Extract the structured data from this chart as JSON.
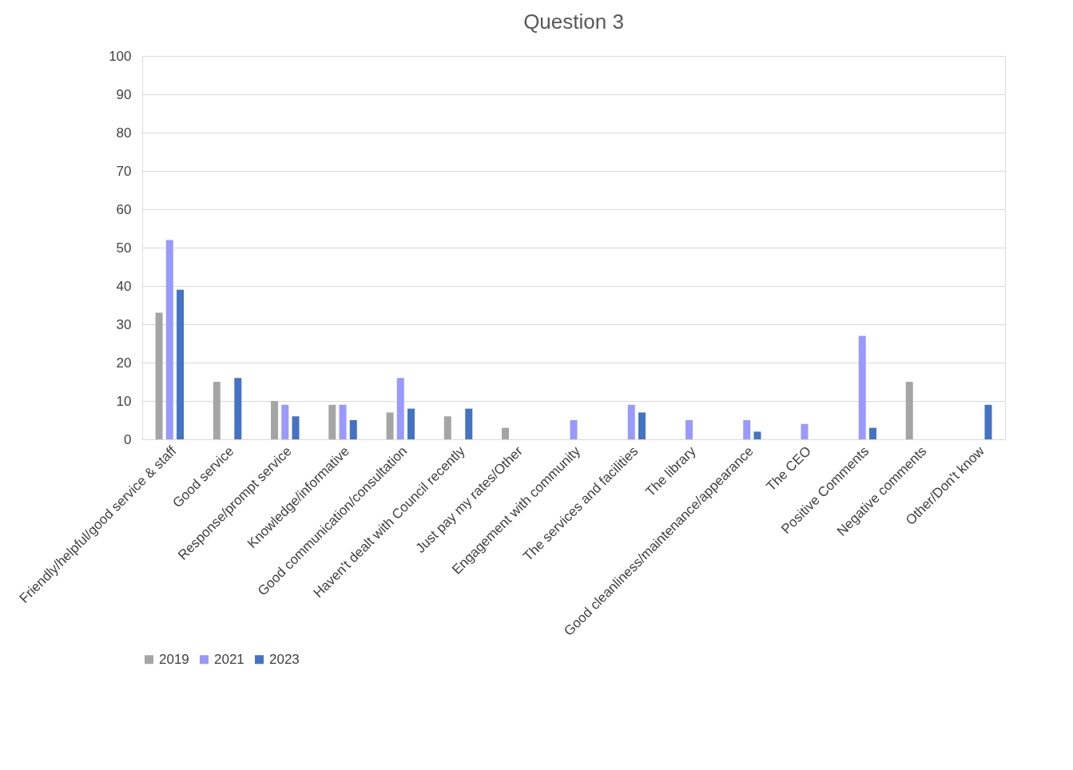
{
  "chart_data": {
    "type": "bar",
    "title": "Question 3",
    "categories": [
      "Friendly/helpful/good service & staff",
      "Good service",
      "Response/prompt service",
      "Knowledge/informative",
      "Good communication/consultation",
      "Haven't dealt with Council recently",
      "Just pay my rates/Other",
      "Engagement with community",
      "The services and facilities",
      "The library",
      "Good cleanliness/maintenance/appearance",
      "The CEO",
      "Positive Comments",
      "Negative comments",
      "Other/Don't know"
    ],
    "series": [
      {
        "name": "2019",
        "color": "#a5a5a5",
        "values": [
          33,
          15,
          10,
          9,
          7,
          6,
          3,
          null,
          null,
          null,
          null,
          null,
          null,
          15,
          null
        ]
      },
      {
        "name": "2021",
        "color": "#9999ff",
        "values": [
          52,
          null,
          9,
          9,
          16,
          null,
          null,
          5,
          9,
          5,
          5,
          4,
          27,
          null,
          null
        ]
      },
      {
        "name": "2023",
        "color": "#4472c4",
        "values": [
          39,
          16,
          6,
          5,
          8,
          8,
          null,
          null,
          7,
          null,
          2,
          null,
          3,
          null,
          9
        ]
      }
    ],
    "ylim": [
      0,
      100
    ],
    "yticks": [
      0,
      10,
      20,
      30,
      40,
      50,
      60,
      70,
      80,
      90,
      100
    ],
    "grid": "y",
    "legend": "bottom"
  }
}
